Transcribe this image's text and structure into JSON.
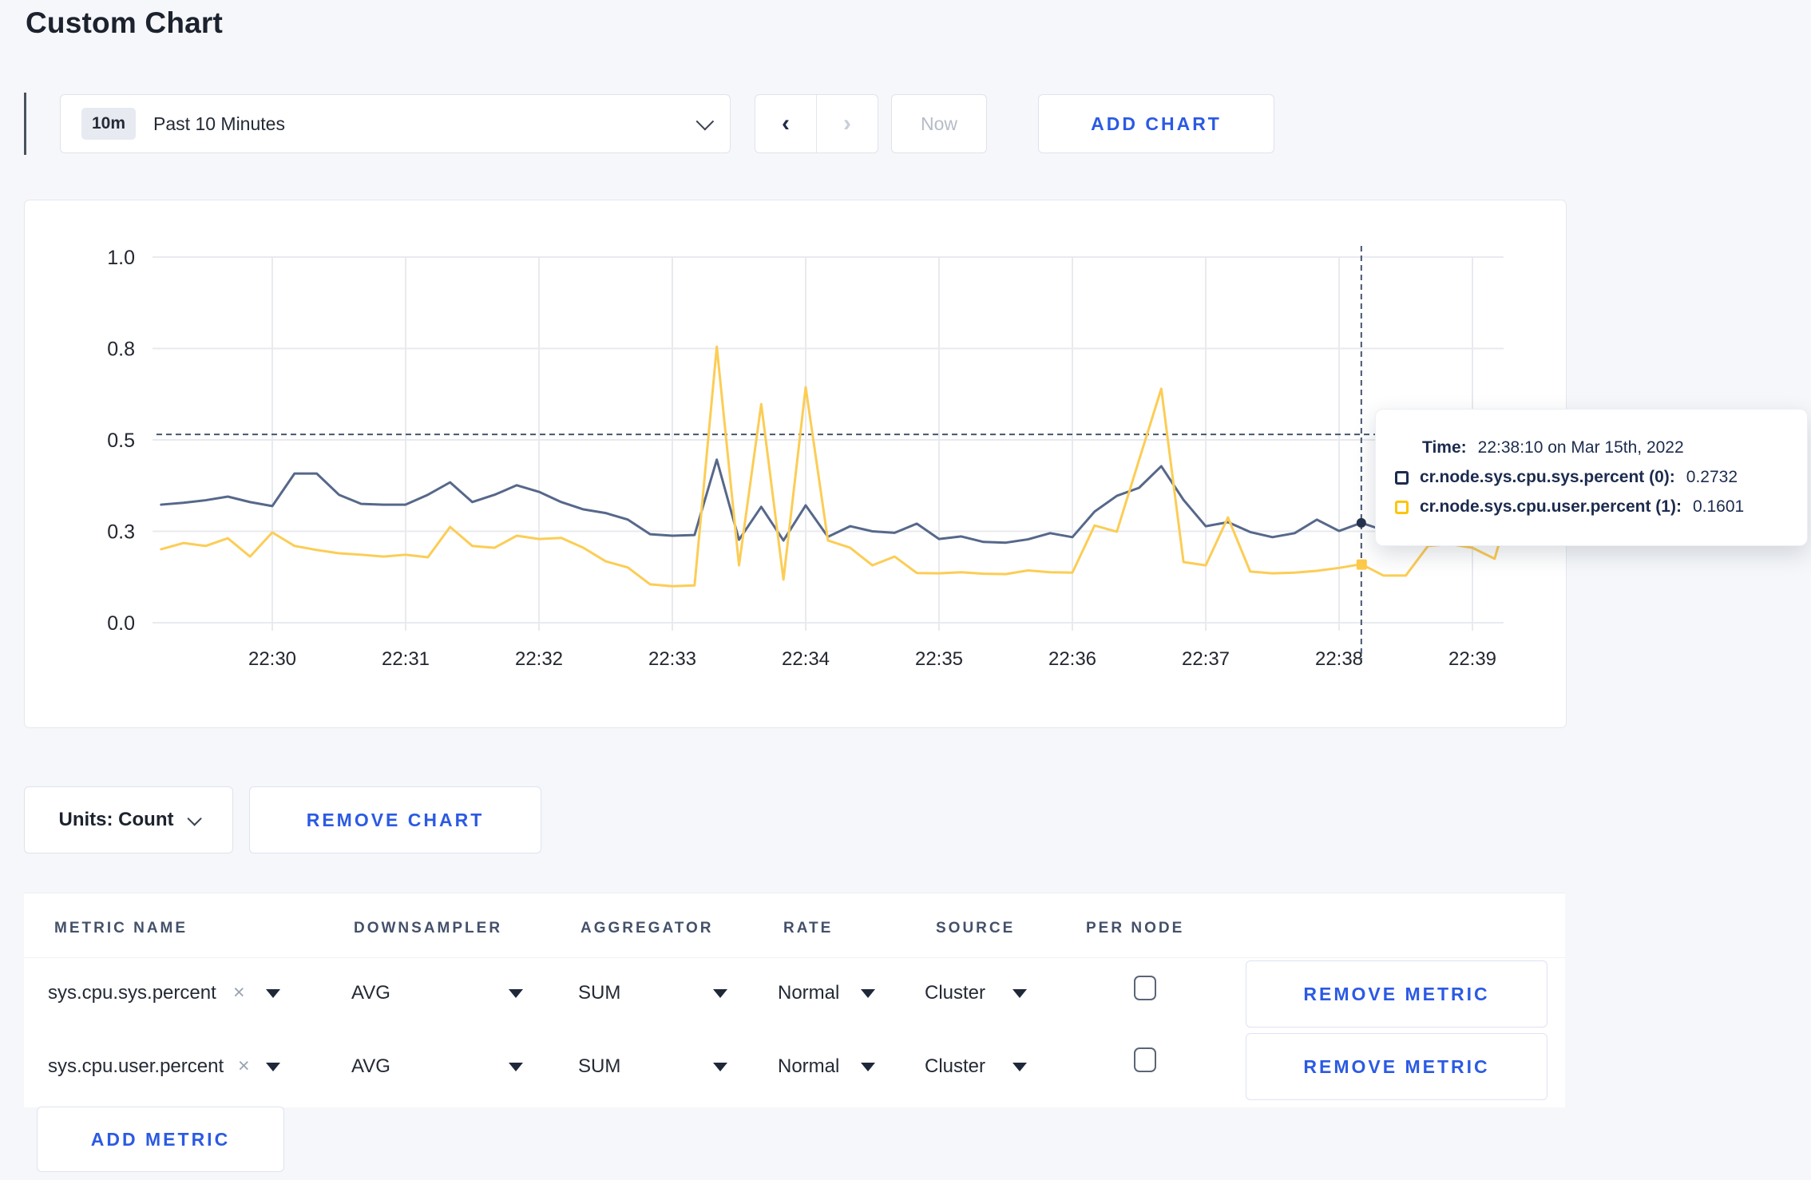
{
  "page": {
    "title": "Custom Chart"
  },
  "toolbar": {
    "range_badge": "10m",
    "range_label": "Past 10 Minutes",
    "prev_label": "‹",
    "next_label": "›",
    "now_label": "Now",
    "add_chart_label": "ADD CHART"
  },
  "chart_controls": {
    "units_label": "Units: Count",
    "remove_chart_label": "REMOVE CHART",
    "add_metric_label": "ADD METRIC"
  },
  "tooltip": {
    "time_label": "Time:",
    "time_value": "22:38:10 on Mar 15th, 2022",
    "series": [
      {
        "label": "cr.node.sys.cpu.sys.percent (0):",
        "value": "0.2732",
        "color": "#1c2b4e"
      },
      {
        "label": "cr.node.sys.cpu.user.percent (1):",
        "value": "0.1601",
        "color": "#fdc50b"
      }
    ]
  },
  "metrics_table": {
    "headers": [
      "METRIC NAME",
      "DOWNSAMPLER",
      "AGGREGATOR",
      "RATE",
      "SOURCE",
      "PER NODE"
    ],
    "rows": [
      {
        "metric": "sys.cpu.sys.percent",
        "remove_icon": "×",
        "downsampler": "AVG",
        "aggregator": "SUM",
        "rate": "Normal",
        "source": "Cluster",
        "per_node_checked": false,
        "remove_label": "REMOVE METRIC"
      },
      {
        "metric": "sys.cpu.user.percent",
        "remove_icon": "×",
        "downsampler": "AVG",
        "aggregator": "SUM",
        "rate": "Normal",
        "source": "Cluster",
        "per_node_checked": false,
        "remove_label": "REMOVE METRIC"
      }
    ]
  },
  "chart_data": {
    "type": "line",
    "title": "",
    "xlabel": "",
    "ylabel": "",
    "ylim": [
      0,
      1
    ],
    "grid": true,
    "legend_position": "tooltip-only",
    "start_time": "22:29:10",
    "interval_seconds": 10,
    "x_tick_labels": [
      "22:30",
      "22:31",
      "22:32",
      "22:33",
      "22:34",
      "22:35",
      "22:36",
      "22:37",
      "22:38",
      "22:39"
    ],
    "y_ticks": [
      {
        "value": 0.0,
        "label": "0.0"
      },
      {
        "value": 0.25,
        "label": "0.3"
      },
      {
        "value": 0.5,
        "label": "0.5"
      },
      {
        "value": 0.75,
        "label": "0.8"
      },
      {
        "value": 1.0,
        "label": "1.0"
      }
    ],
    "series": [
      {
        "name": "cr.node.sys.cpu.sys.percent",
        "color": "#56688a",
        "marker_color": "#26334f",
        "values": [
          0.323,
          0.328,
          0.335,
          0.345,
          0.33,
          0.319,
          0.408,
          0.408,
          0.35,
          0.325,
          0.323,
          0.323,
          0.35,
          0.384,
          0.33,
          0.35,
          0.376,
          0.358,
          0.33,
          0.31,
          0.3,
          0.282,
          0.242,
          0.238,
          0.24,
          0.446,
          0.227,
          0.317,
          0.225,
          0.321,
          0.235,
          0.264,
          0.25,
          0.246,
          0.271,
          0.229,
          0.236,
          0.221,
          0.219,
          0.228,
          0.245,
          0.234,
          0.304,
          0.347,
          0.369,
          0.428,
          0.336,
          0.264,
          0.275,
          0.248,
          0.234,
          0.245,
          0.282,
          0.251,
          0.2732,
          0.253,
          0.262,
          0.27,
          0.28,
          0.29,
          0.296,
          0.3
        ]
      },
      {
        "name": "cr.node.sys.cpu.user.percent",
        "color": "#fccd55",
        "marker_color": "#fdc94a",
        "values": [
          0.201,
          0.218,
          0.21,
          0.231,
          0.181,
          0.247,
          0.21,
          0.199,
          0.19,
          0.186,
          0.181,
          0.186,
          0.179,
          0.262,
          0.21,
          0.205,
          0.238,
          0.229,
          0.232,
          0.205,
          0.168,
          0.151,
          0.105,
          0.1,
          0.102,
          0.755,
          0.157,
          0.598,
          0.118,
          0.644,
          0.225,
          0.205,
          0.157,
          0.181,
          0.136,
          0.135,
          0.138,
          0.134,
          0.133,
          0.143,
          0.138,
          0.137,
          0.266,
          0.249,
          0.445,
          0.64,
          0.166,
          0.157,
          0.288,
          0.14,
          0.135,
          0.137,
          0.142,
          0.15,
          0.1601,
          0.129,
          0.129,
          0.21,
          0.215,
          0.205,
          0.175,
          0.26
        ]
      }
    ],
    "crosshair": {
      "time": "22:38:10",
      "index": 54,
      "horizontal_value": 0.515,
      "color": "#46566f"
    },
    "colors": {
      "gridline": "#e8eaef",
      "axis_text": "#23272f"
    }
  }
}
